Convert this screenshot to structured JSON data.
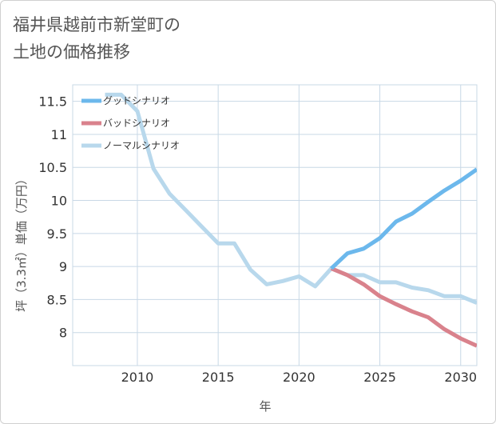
{
  "title_lines": [
    "福井県越前市新堂町の",
    "土地の価格推移"
  ],
  "chart_data": {
    "type": "line",
    "xlabel": "年",
    "ylabel": "坪（3.3㎡）単価（万円）",
    "xlim": [
      2006,
      2031
    ],
    "ylim": [
      7.5,
      11.75
    ],
    "x_ticks": [
      2010,
      2015,
      2020,
      2025,
      2030
    ],
    "y_ticks": [
      8,
      8.5,
      9,
      9.5,
      10,
      10.5,
      11,
      11.5
    ],
    "grid": true,
    "legend_position": "top-left",
    "series": [
      {
        "name": "グッドシナリオ",
        "color": "#6cb8ec",
        "x": [
          2022,
          2023,
          2024,
          2025,
          2026,
          2027,
          2028,
          2029,
          2030,
          2031
        ],
        "y": [
          8.97,
          9.2,
          9.27,
          9.43,
          9.68,
          9.8,
          9.98,
          10.15,
          10.3,
          10.47
        ]
      },
      {
        "name": "バッドシナリオ",
        "color": "#d9828c",
        "x": [
          2022,
          2023,
          2024,
          2025,
          2026,
          2027,
          2028,
          2029,
          2030,
          2031
        ],
        "y": [
          8.97,
          8.87,
          8.73,
          8.55,
          8.43,
          8.32,
          8.23,
          8.05,
          7.91,
          7.8
        ]
      },
      {
        "name": "ノーマルシナリオ",
        "color": "#b8d8ec",
        "x": [
          2008,
          2009,
          2010,
          2011,
          2012,
          2013,
          2014,
          2015,
          2016,
          2017,
          2018,
          2019,
          2020,
          2021,
          2022,
          2023,
          2024,
          2025,
          2026,
          2027,
          2028,
          2029,
          2030,
          2031
        ],
        "y": [
          11.6,
          11.6,
          11.35,
          10.48,
          10.1,
          9.85,
          9.6,
          9.35,
          9.35,
          8.95,
          8.73,
          8.78,
          8.85,
          8.7,
          8.97,
          8.87,
          8.87,
          8.76,
          8.76,
          8.68,
          8.64,
          8.55,
          8.55,
          8.45
        ]
      }
    ]
  }
}
